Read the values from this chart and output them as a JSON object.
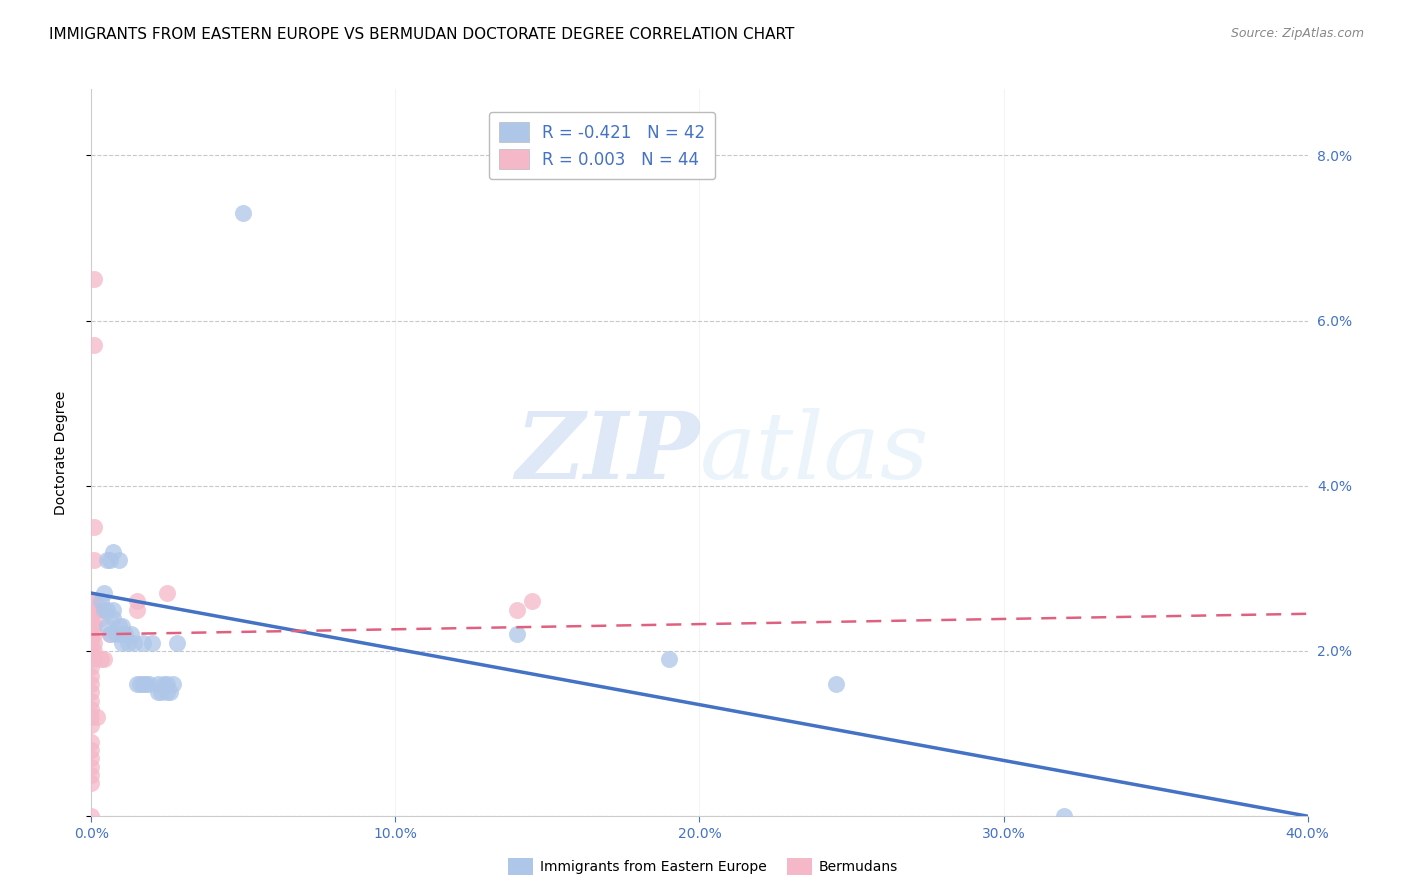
{
  "title": "IMMIGRANTS FROM EASTERN EUROPE VS BERMUDAN DOCTORATE DEGREE CORRELATION CHART",
  "source": "Source: ZipAtlas.com",
  "xlabel_color": "#4472c4",
  "ylabel": "Doctorate Degree",
  "xlim": [
    0.0,
    0.4
  ],
  "ylim": [
    0.0,
    0.088
  ],
  "xticks": [
    0.0,
    0.1,
    0.2,
    0.3,
    0.4
  ],
  "yticks": [
    0.0,
    0.02,
    0.04,
    0.06,
    0.08
  ],
  "ytick_labels_right": [
    "",
    "2.0%",
    "4.0%",
    "6.0%",
    "8.0%"
  ],
  "xtick_labels": [
    "0.0%",
    "10.0%",
    "20.0%",
    "30.0%",
    "40.0%"
  ],
  "blue_scatter_x": [
    0.003,
    0.004,
    0.004,
    0.005,
    0.005,
    0.005,
    0.006,
    0.006,
    0.007,
    0.007,
    0.007,
    0.008,
    0.009,
    0.009,
    0.01,
    0.01,
    0.01,
    0.011,
    0.012,
    0.013,
    0.014,
    0.015,
    0.016,
    0.017,
    0.017,
    0.018,
    0.019,
    0.02,
    0.022,
    0.022,
    0.023,
    0.024,
    0.025,
    0.025,
    0.026,
    0.027,
    0.028,
    0.05,
    0.14,
    0.19,
    0.245,
    0.32
  ],
  "blue_scatter_y": [
    0.026,
    0.025,
    0.027,
    0.023,
    0.025,
    0.031,
    0.022,
    0.031,
    0.024,
    0.025,
    0.032,
    0.022,
    0.023,
    0.031,
    0.021,
    0.022,
    0.023,
    0.022,
    0.021,
    0.022,
    0.021,
    0.016,
    0.016,
    0.016,
    0.021,
    0.016,
    0.016,
    0.021,
    0.015,
    0.016,
    0.015,
    0.016,
    0.016,
    0.015,
    0.015,
    0.016,
    0.021,
    0.073,
    0.022,
    0.019,
    0.016,
    0.0
  ],
  "pink_scatter_x": [
    0.0,
    0.0,
    0.0,
    0.0,
    0.0,
    0.0,
    0.0,
    0.0,
    0.0,
    0.0,
    0.0,
    0.0,
    0.0,
    0.0,
    0.0,
    0.0,
    0.0,
    0.0,
    0.0,
    0.0,
    0.0,
    0.0,
    0.001,
    0.001,
    0.001,
    0.001,
    0.001,
    0.001,
    0.001,
    0.001,
    0.001,
    0.001,
    0.001,
    0.002,
    0.002,
    0.003,
    0.003,
    0.004,
    0.006,
    0.015,
    0.015,
    0.025,
    0.14,
    0.145
  ],
  "pink_scatter_y": [
    0.0,
    0.004,
    0.005,
    0.006,
    0.007,
    0.008,
    0.009,
    0.011,
    0.012,
    0.013,
    0.014,
    0.015,
    0.016,
    0.017,
    0.018,
    0.02,
    0.021,
    0.022,
    0.023,
    0.024,
    0.025,
    0.026,
    0.019,
    0.02,
    0.021,
    0.022,
    0.023,
    0.025,
    0.026,
    0.031,
    0.035,
    0.057,
    0.065,
    0.012,
    0.025,
    0.019,
    0.024,
    0.019,
    0.022,
    0.025,
    0.026,
    0.027,
    0.025,
    0.026
  ],
  "blue_line_x": [
    0.0,
    0.4
  ],
  "blue_line_y": [
    0.027,
    0.0
  ],
  "pink_line_x": [
    0.0,
    0.4
  ],
  "pink_line_y": [
    0.022,
    0.0245
  ],
  "legend_blue_label": "R = -0.421   N = 42",
  "legend_pink_label": "R = 0.003   N = 44",
  "legend_blue_color": "#aec6e8",
  "legend_pink_color": "#f4b8c8",
  "scatter_blue_color": "#aec6e8",
  "scatter_pink_color": "#f4b8c8",
  "line_blue_color": "#4472c4",
  "line_pink_color": "#e06080",
  "grid_color": "#c8c8c8",
  "watermark_zip": "ZIP",
  "watermark_atlas": "atlas",
  "footer_legend_blue": "Immigrants from Eastern Europe",
  "footer_legend_pink": "Bermudans",
  "title_fontsize": 11,
  "source_fontsize": 9
}
